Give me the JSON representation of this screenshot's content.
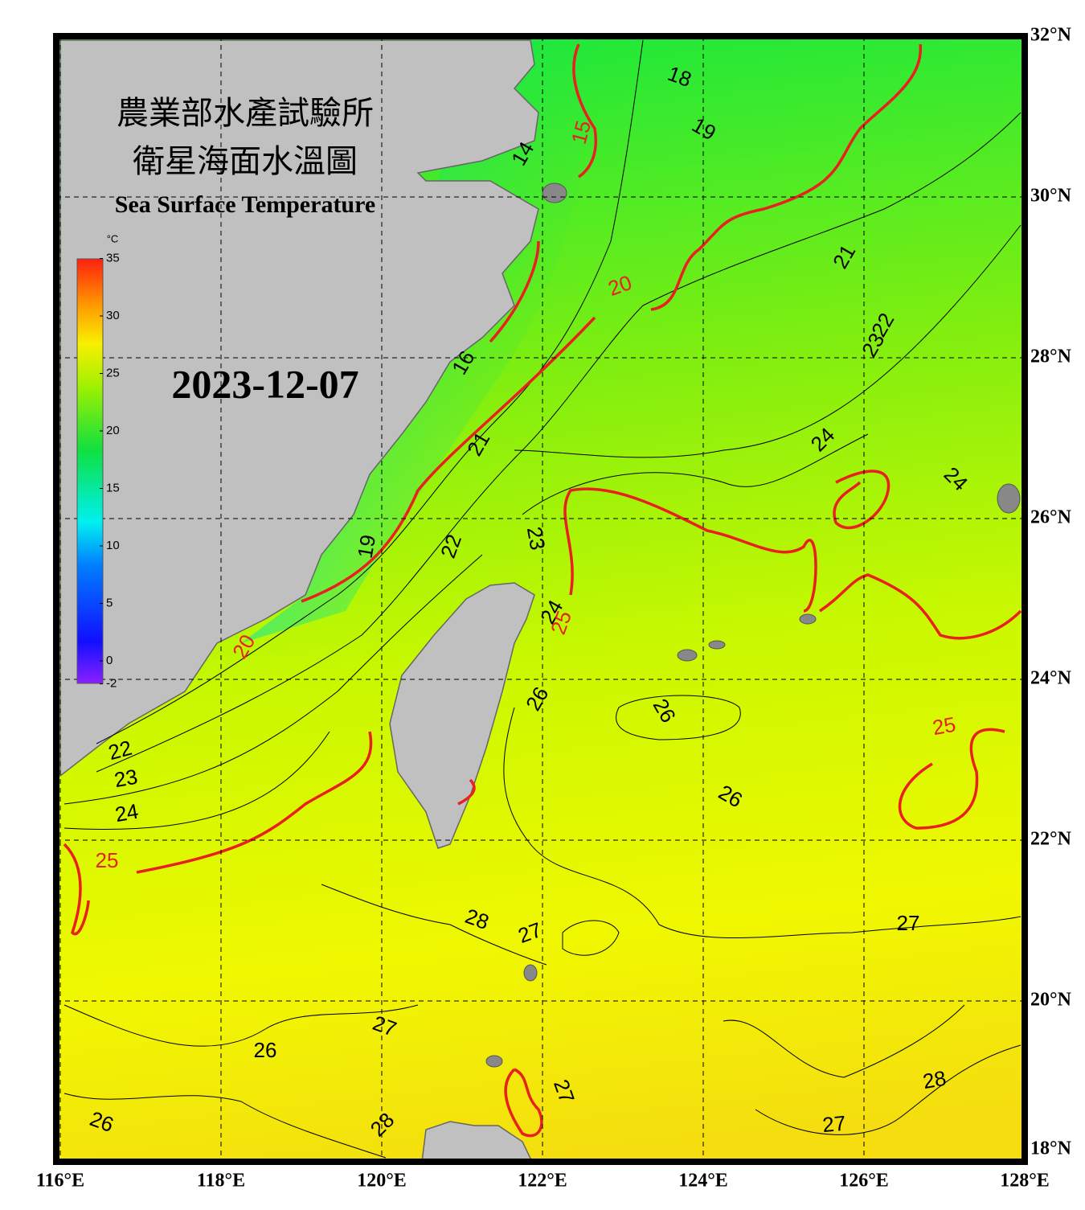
{
  "header": {
    "title_zh_1": "農業部水產試驗所",
    "title_zh_2": "衛星海面水溫圖",
    "title_en": "Sea Surface Temperature",
    "date": "2023-12-07"
  },
  "colorbar": {
    "unit": "°C",
    "ticks": [
      35,
      30,
      25,
      20,
      15,
      10,
      5,
      0,
      -2
    ]
  },
  "lat_ticks": [
    {
      "value": 32,
      "label": "32°N"
    },
    {
      "value": 30,
      "label": "30°N"
    },
    {
      "value": 28,
      "label": "28°N"
    },
    {
      "value": 26,
      "label": "26°N"
    },
    {
      "value": 24,
      "label": "24°N"
    },
    {
      "value": 22,
      "label": "22°N"
    },
    {
      "value": 20,
      "label": "20°N"
    },
    {
      "value": 18,
      "label": "18°N"
    }
  ],
  "lon_ticks": [
    {
      "value": 116,
      "label": "116°E"
    },
    {
      "value": 118,
      "label": "118°E"
    },
    {
      "value": 120,
      "label": "120°E"
    },
    {
      "value": 122,
      "label": "122°E"
    },
    {
      "value": 124,
      "label": "124°E"
    },
    {
      "value": 126,
      "label": "126°E"
    },
    {
      "value": 128,
      "label": "128°E"
    }
  ],
  "contour_labels": [
    18,
    19,
    14,
    15,
    20,
    21,
    22,
    23,
    24,
    24,
    16,
    21,
    22,
    23,
    19,
    24,
    25,
    26,
    26,
    26,
    25,
    20,
    22,
    23,
    24,
    25,
    28,
    27,
    27,
    27,
    26,
    27,
    28,
    27,
    26,
    28
  ]
}
